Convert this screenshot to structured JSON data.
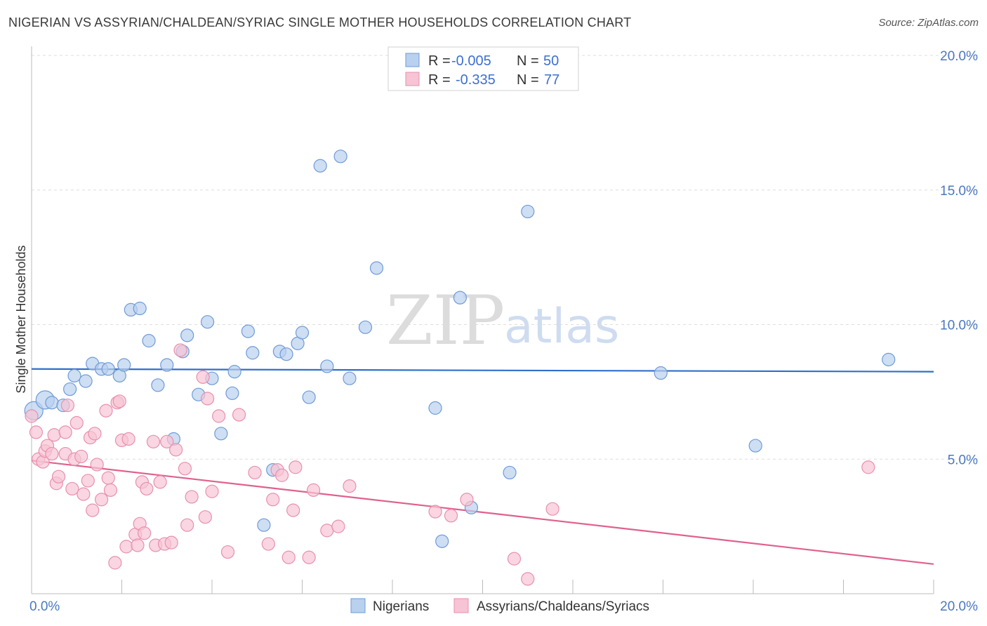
{
  "title": "NIGERIAN VS ASSYRIAN/CHALDEAN/SYRIAC SINGLE MOTHER HOUSEHOLDS CORRELATION CHART",
  "source": "Source: ZipAtlas.com",
  "watermark": {
    "zip": "ZIP",
    "atlas": "atlas"
  },
  "colors": {
    "blue_fill": "#b9d0ee",
    "blue_stroke": "#6f9bd8",
    "blue_line": "#2f6fcb",
    "pink_fill": "#f6c4d4",
    "pink_stroke": "#e890ad",
    "pink_line": "#e0608d"
  },
  "legend_box": {
    "rows": [
      {
        "r_label": "R =",
        "r_value": "-0.005",
        "n_label": "N =",
        "n_value": "50"
      },
      {
        "r_label": "R =",
        "r_value": "-0.335",
        "n_label": "N =",
        "n_value": "77"
      }
    ]
  },
  "chart_data": {
    "type": "scatter",
    "xlabel": "",
    "ylabel": "Single Mother Households",
    "xlim": [
      0,
      20
    ],
    "ylim": [
      0,
      20
    ],
    "y_ticks": [
      "5.0%",
      "10.0%",
      "15.0%",
      "20.0%"
    ],
    "y_tick_values": [
      5,
      10,
      15,
      20
    ],
    "x_tick_labels": [
      "0.0%",
      "20.0%"
    ],
    "x_tick_label_values": [
      0,
      20
    ],
    "x_minor_ticks": [
      0,
      2,
      4,
      6,
      8,
      10,
      12,
      14,
      16,
      18,
      20
    ],
    "grid": true,
    "legend_position": "bottom-center",
    "series": [
      {
        "name": "Nigerians",
        "color": "#6f9bd8",
        "trend": [
          [
            0,
            8.35
          ],
          [
            20,
            8.25
          ]
        ],
        "points": [
          [
            0.05,
            6.8
          ],
          [
            0.3,
            7.2
          ],
          [
            0.45,
            7.1
          ],
          [
            0.7,
            7.0
          ],
          [
            0.85,
            7.6
          ],
          [
            0.95,
            8.1
          ],
          [
            1.2,
            7.9
          ],
          [
            1.35,
            8.55
          ],
          [
            1.55,
            8.35
          ],
          [
            1.7,
            8.35
          ],
          [
            1.95,
            8.1
          ],
          [
            2.05,
            8.5
          ],
          [
            2.2,
            10.55
          ],
          [
            2.4,
            10.6
          ],
          [
            2.6,
            9.4
          ],
          [
            2.8,
            7.75
          ],
          [
            3.0,
            8.5
          ],
          [
            3.15,
            5.75
          ],
          [
            3.35,
            9.0
          ],
          [
            3.45,
            9.6
          ],
          [
            3.7,
            7.4
          ],
          [
            3.9,
            10.1
          ],
          [
            4.0,
            8.0
          ],
          [
            4.2,
            5.95
          ],
          [
            4.45,
            7.45
          ],
          [
            4.5,
            8.25
          ],
          [
            4.8,
            9.75
          ],
          [
            4.9,
            8.95
          ],
          [
            5.15,
            2.55
          ],
          [
            5.35,
            4.6
          ],
          [
            5.5,
            9.0
          ],
          [
            5.65,
            8.9
          ],
          [
            5.9,
            9.3
          ],
          [
            6.0,
            9.7
          ],
          [
            6.15,
            7.3
          ],
          [
            6.4,
            15.9
          ],
          [
            6.55,
            8.45
          ],
          [
            6.85,
            16.25
          ],
          [
            7.05,
            8.0
          ],
          [
            7.4,
            9.9
          ],
          [
            7.65,
            12.1
          ],
          [
            8.95,
            6.9
          ],
          [
            9.1,
            1.95
          ],
          [
            9.5,
            11.0
          ],
          [
            9.75,
            3.2
          ],
          [
            10.6,
            4.5
          ],
          [
            11.0,
            14.2
          ],
          [
            13.95,
            8.2
          ],
          [
            16.05,
            5.5
          ],
          [
            19.0,
            8.7
          ]
        ]
      },
      {
        "name": "Assyrians/Chaldeans/Syriacs",
        "color": "#e890ad",
        "trend": [
          [
            0,
            4.95
          ],
          [
            20,
            1.1
          ]
        ],
        "points": [
          [
            0.0,
            6.6
          ],
          [
            0.1,
            6.0
          ],
          [
            0.15,
            5.0
          ],
          [
            0.25,
            4.9
          ],
          [
            0.3,
            5.3
          ],
          [
            0.35,
            5.5
          ],
          [
            0.45,
            5.2
          ],
          [
            0.5,
            5.9
          ],
          [
            0.55,
            4.1
          ],
          [
            0.6,
            4.35
          ],
          [
            0.75,
            5.2
          ],
          [
            0.75,
            6.0
          ],
          [
            0.8,
            7.0
          ],
          [
            0.9,
            3.9
          ],
          [
            0.95,
            5.0
          ],
          [
            1.0,
            6.35
          ],
          [
            1.1,
            5.1
          ],
          [
            1.15,
            3.7
          ],
          [
            1.25,
            4.2
          ],
          [
            1.3,
            5.8
          ],
          [
            1.35,
            3.1
          ],
          [
            1.4,
            5.95
          ],
          [
            1.45,
            4.8
          ],
          [
            1.55,
            3.5
          ],
          [
            1.65,
            6.8
          ],
          [
            1.7,
            4.3
          ],
          [
            1.75,
            3.85
          ],
          [
            1.85,
            1.15
          ],
          [
            1.9,
            7.1
          ],
          [
            1.95,
            7.15
          ],
          [
            2.0,
            5.7
          ],
          [
            2.1,
            1.75
          ],
          [
            2.15,
            5.75
          ],
          [
            2.3,
            2.2
          ],
          [
            2.35,
            1.8
          ],
          [
            2.4,
            2.6
          ],
          [
            2.45,
            4.15
          ],
          [
            2.5,
            2.25
          ],
          [
            2.55,
            3.9
          ],
          [
            2.7,
            5.65
          ],
          [
            2.75,
            1.8
          ],
          [
            2.85,
            4.15
          ],
          [
            2.95,
            1.85
          ],
          [
            3.0,
            5.65
          ],
          [
            3.1,
            1.9
          ],
          [
            3.2,
            5.35
          ],
          [
            3.3,
            9.05
          ],
          [
            3.4,
            4.65
          ],
          [
            3.45,
            2.55
          ],
          [
            3.55,
            3.6
          ],
          [
            3.8,
            8.05
          ],
          [
            3.85,
            2.85
          ],
          [
            3.9,
            7.25
          ],
          [
            4.0,
            3.8
          ],
          [
            4.15,
            6.6
          ],
          [
            4.35,
            1.55
          ],
          [
            4.6,
            6.65
          ],
          [
            4.95,
            4.5
          ],
          [
            5.25,
            1.85
          ],
          [
            5.35,
            3.5
          ],
          [
            5.45,
            4.6
          ],
          [
            5.55,
            4.4
          ],
          [
            5.7,
            1.35
          ],
          [
            5.8,
            3.1
          ],
          [
            5.85,
            4.7
          ],
          [
            6.15,
            1.35
          ],
          [
            6.25,
            3.85
          ],
          [
            6.55,
            2.35
          ],
          [
            6.8,
            2.5
          ],
          [
            7.05,
            4.0
          ],
          [
            8.95,
            3.05
          ],
          [
            9.3,
            2.9
          ],
          [
            9.65,
            3.5
          ],
          [
            10.7,
            1.3
          ],
          [
            11.0,
            0.55
          ],
          [
            11.55,
            3.15
          ],
          [
            18.55,
            4.7
          ]
        ]
      }
    ]
  },
  "bottom_legend": [
    {
      "label": "Nigerians"
    },
    {
      "label": "Assyrians/Chaldeans/Syriacs"
    }
  ]
}
